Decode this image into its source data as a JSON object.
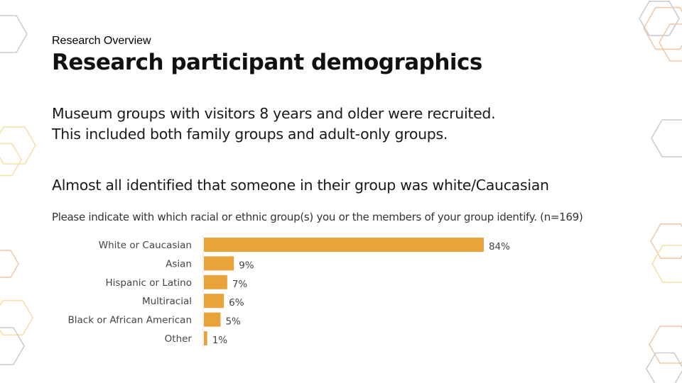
{
  "slide": {
    "eyebrow": "Research Overview",
    "title": "Research participant demographics",
    "body_line1": "Museum groups with visitors 8 years and older were recruited.",
    "body_line2": "This included both family groups and adult-only groups.",
    "finding": "Almost all identified that someone in their group was white/Caucasian"
  },
  "chart_data": {
    "type": "bar",
    "orientation": "horizontal",
    "title": "Please indicate with which racial or ethnic group(s) you or the members of your group identify. (n=169)",
    "categories": [
      "White or Caucasian",
      "Asian",
      "Hispanic or Latino",
      "Multiracial",
      "Black or African American",
      "Other"
    ],
    "values": [
      84,
      9,
      7,
      6,
      5,
      1
    ],
    "value_labels": [
      "84%",
      "9%",
      "7%",
      "6%",
      "5%",
      "1%"
    ],
    "unit": "%",
    "xlim": [
      0,
      100
    ],
    "grid": false,
    "bar_color": "#E8A33A"
  },
  "decor_colors": {
    "gray": "#c9ccd4",
    "peach": "#f3c9ac",
    "yellow": "#f7e0a8"
  }
}
